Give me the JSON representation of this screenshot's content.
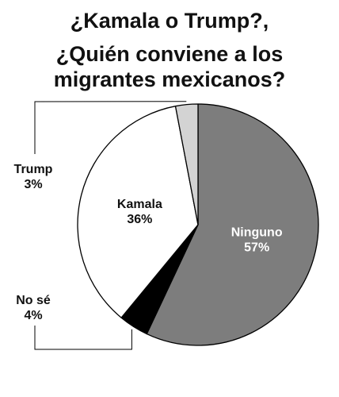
{
  "title": {
    "line1": "¿Kamala o Trump?,",
    "line2": "¿Quién conviene a los",
    "line3": "migrantes mexicanos?"
  },
  "chart_data": {
    "type": "pie",
    "title": "¿Kamala o Trump?, ¿Quién conviene a los migrantes mexicanos?",
    "slices": [
      {
        "name": "Ninguno",
        "value": 57,
        "label": "57%",
        "color": "#7d7d7d"
      },
      {
        "name": "No sé",
        "value": 4,
        "label": "4%",
        "color": "#000000"
      },
      {
        "name": "Kamala",
        "value": 36,
        "label": "36%",
        "color": "#ffffff"
      },
      {
        "name": "Trump",
        "value": 3,
        "label": "3%",
        "color": "#d3d3d3"
      }
    ],
    "start_angle_deg": 0,
    "direction": "clockwise",
    "legend": "none"
  }
}
